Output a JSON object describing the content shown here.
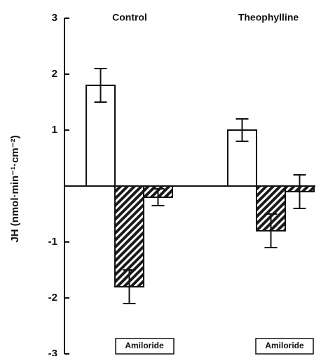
{
  "chart_data": {
    "type": "bar",
    "categories": [
      "Control",
      "Theophylline"
    ],
    "ylabel": "JH (nmol·min⁻¹·cm⁻²)",
    "series": [
      {
        "color": "#ffffff",
        "hatch": false,
        "values": [
          1.8,
          1.0
        ],
        "errors": [
          0.3,
          0.2
        ]
      },
      {
        "color": "#ffffff",
        "hatch": true,
        "values": [
          -1.8,
          -0.8
        ],
        "errors": [
          0.3,
          0.3
        ]
      },
      {
        "color": "#ffffff",
        "hatch": true,
        "values": [
          -0.2,
          -0.1
        ],
        "errors": [
          0.15,
          0.3
        ]
      }
    ],
    "annotations": [
      "Amiloride",
      "Amiloride"
    ],
    "ylim": [
      -3,
      3
    ],
    "yticks": [
      -3,
      -2,
      -1,
      1,
      2,
      3
    ],
    "grid": false
  }
}
